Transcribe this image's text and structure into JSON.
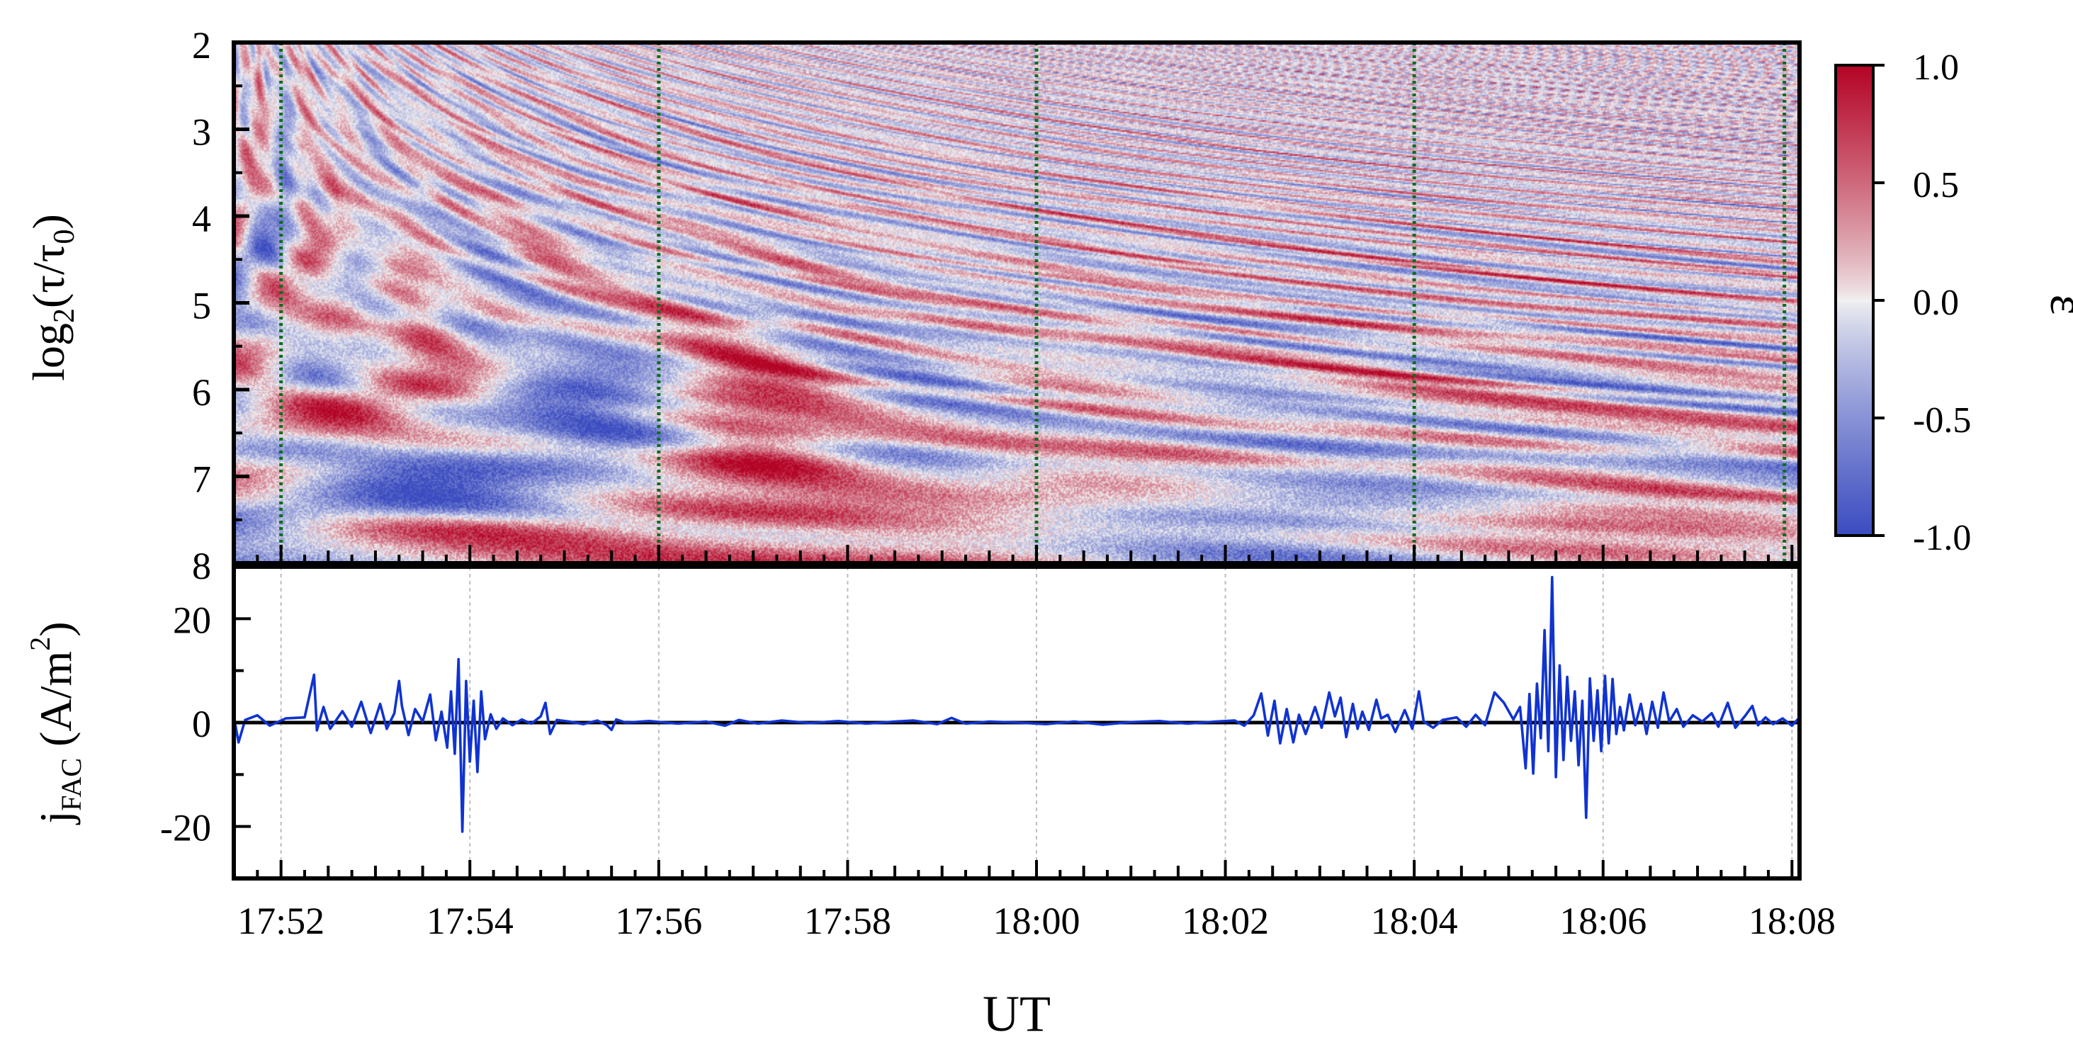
{
  "figure": {
    "xlabel": "UT",
    "colors": {
      "positive": "#b40426",
      "neutral": "#f2f2f2",
      "negative": "#3b4cc0",
      "current_line": "#1033d0",
      "marker_lines": "#0b6e1a"
    }
  },
  "chart_data": [
    {
      "type": "heatmap",
      "panel": "top",
      "ylabel_main": "log",
      "ylabel_sub": "2",
      "ylabel_rest": "(τ/τ",
      "ylabel_sub2": "0",
      "ylabel_close": ")",
      "y_ticks": [
        "2",
        "3",
        "4",
        "5",
        "6",
        "7",
        "8"
      ],
      "ylim": [
        2,
        8
      ],
      "y_inverted": true,
      "x_time_range": [
        "17:51:30",
        "18:08:05"
      ],
      "value_range": [
        -1.0,
        1.0
      ],
      "dotted_markers_x": [
        "17:52:00",
        "17:56:00",
        "18:00:00",
        "18:04:00",
        "18:07:55"
      ],
      "colorbar": {
        "label": "ε̅",
        "ticks": [
          "1.0",
          "0.5",
          "0.0",
          "-0.5",
          "-1.0"
        ],
        "tick_values": [
          1.0,
          0.5,
          0.0,
          -0.5,
          -1.0
        ]
      }
    },
    {
      "type": "line",
      "panel": "bottom",
      "ylabel_j": "j",
      "ylabel_sub": "FAC",
      "ylabel_units": " (A/m",
      "ylabel_sup": "2",
      "ylabel_close": ")",
      "y_ticks": [
        "20",
        "0",
        "-20"
      ],
      "y_tick_values": [
        20,
        0,
        -20
      ],
      "ylim": [
        -30,
        30
      ],
      "x_ticks": [
        "17:52",
        "17:54",
        "17:56",
        "17:58",
        "18:00",
        "18:02",
        "18:04",
        "18:06",
        "18:08"
      ],
      "x_tick_minutes": [
        0.5,
        2.5,
        4.5,
        6.5,
        8.5,
        10.5,
        12.5,
        14.5,
        16.5
      ],
      "x_range_minutes": [
        0,
        16.58
      ],
      "series": [
        {
          "name": "jFAC",
          "points": [
            [
              0.0,
              1.2
            ],
            [
              0.05,
              -3.8
            ],
            [
              0.12,
              0.5
            ],
            [
              0.25,
              1.4
            ],
            [
              0.38,
              -0.6
            ],
            [
              0.55,
              0.8
            ],
            [
              0.75,
              1.0
            ],
            [
              0.85,
              9.2
            ],
            [
              0.88,
              -1.5
            ],
            [
              0.95,
              3.0
            ],
            [
              1.02,
              -1.2
            ],
            [
              1.15,
              2.2
            ],
            [
              1.25,
              -0.8
            ],
            [
              1.35,
              4.0
            ],
            [
              1.45,
              -2.0
            ],
            [
              1.55,
              3.6
            ],
            [
              1.62,
              -1.2
            ],
            [
              1.7,
              1.8
            ],
            [
              1.75,
              8.0
            ],
            [
              1.78,
              3.2
            ],
            [
              1.85,
              -2.4
            ],
            [
              1.92,
              2.6
            ],
            [
              2.0,
              0.2
            ],
            [
              2.08,
              5.4
            ],
            [
              2.14,
              -3.4
            ],
            [
              2.2,
              2.1
            ],
            [
              2.26,
              -4.8
            ],
            [
              2.3,
              6.0
            ],
            [
              2.34,
              -6.0
            ],
            [
              2.38,
              12.2
            ],
            [
              2.42,
              -21.0
            ],
            [
              2.46,
              8.0
            ],
            [
              2.5,
              -7.5
            ],
            [
              2.54,
              4.2
            ],
            [
              2.58,
              -9.5
            ],
            [
              2.62,
              6.0
            ],
            [
              2.66,
              -3.2
            ],
            [
              2.72,
              1.6
            ],
            [
              2.78,
              -1.2
            ],
            [
              2.85,
              0.8
            ],
            [
              2.95,
              -0.5
            ],
            [
              3.05,
              0.6
            ],
            [
              3.15,
              -0.2
            ],
            [
              3.25,
              1.2
            ],
            [
              3.3,
              3.8
            ],
            [
              3.35,
              -2.2
            ],
            [
              3.42,
              0.5
            ],
            [
              3.55,
              0.2
            ],
            [
              3.7,
              -0.3
            ],
            [
              3.85,
              0.4
            ],
            [
              3.95,
              -0.5
            ],
            [
              4.0,
              -1.4
            ],
            [
              4.05,
              0.6
            ],
            [
              4.15,
              0.0
            ],
            [
              4.4,
              0.3
            ],
            [
              4.7,
              -0.2
            ],
            [
              5.0,
              0.2
            ],
            [
              5.2,
              -0.6
            ],
            [
              5.35,
              0.5
            ],
            [
              5.55,
              -0.2
            ],
            [
              5.8,
              0.4
            ],
            [
              6.1,
              -0.1
            ],
            [
              6.4,
              0.3
            ],
            [
              6.7,
              -0.2
            ],
            [
              7.0,
              0.2
            ],
            [
              7.2,
              0.4
            ],
            [
              7.45,
              -0.3
            ],
            [
              7.6,
              0.9
            ],
            [
              7.75,
              -0.2
            ],
            [
              8.0,
              0.2
            ],
            [
              8.3,
              0.0
            ],
            [
              8.6,
              -0.3
            ],
            [
              8.9,
              0.2
            ],
            [
              9.2,
              -0.4
            ],
            [
              9.5,
              0.1
            ],
            [
              9.8,
              0.3
            ],
            [
              10.1,
              -0.2
            ],
            [
              10.4,
              0.2
            ],
            [
              10.6,
              0.4
            ],
            [
              10.7,
              -0.6
            ],
            [
              10.8,
              1.4
            ],
            [
              10.88,
              5.6
            ],
            [
              10.95,
              -2.5
            ],
            [
              11.02,
              4.2
            ],
            [
              11.08,
              -4.0
            ],
            [
              11.15,
              2.6
            ],
            [
              11.22,
              -3.8
            ],
            [
              11.28,
              1.5
            ],
            [
              11.35,
              -2.2
            ],
            [
              11.45,
              3.0
            ],
            [
              11.52,
              -1.0
            ],
            [
              11.6,
              5.8
            ],
            [
              11.66,
              1.2
            ],
            [
              11.72,
              4.8
            ],
            [
              11.78,
              -2.8
            ],
            [
              11.85,
              3.6
            ],
            [
              11.9,
              -1.2
            ],
            [
              11.95,
              2.1
            ],
            [
              12.02,
              -1.4
            ],
            [
              12.1,
              4.4
            ],
            [
              12.15,
              0.8
            ],
            [
              12.22,
              1.5
            ],
            [
              12.3,
              -1.8
            ],
            [
              12.4,
              2.4
            ],
            [
              12.48,
              -1.2
            ],
            [
              12.55,
              6.0
            ],
            [
              12.6,
              0.2
            ],
            [
              12.7,
              -1.0
            ],
            [
              12.8,
              0.5
            ],
            [
              12.95,
              1.0
            ],
            [
              13.05,
              -0.8
            ],
            [
              13.15,
              1.5
            ],
            [
              13.25,
              -0.5
            ],
            [
              13.35,
              5.8
            ],
            [
              13.45,
              3.8
            ],
            [
              13.55,
              0.6
            ],
            [
              13.62,
              3.0
            ],
            [
              13.68,
              -8.8
            ],
            [
              13.72,
              5.5
            ],
            [
              13.76,
              -9.8
            ],
            [
              13.8,
              7.5
            ],
            [
              13.84,
              -3.0
            ],
            [
              13.88,
              17.8
            ],
            [
              13.92,
              -5.5
            ],
            [
              13.96,
              28.0
            ],
            [
              14.0,
              -10.5
            ],
            [
              14.04,
              11.0
            ],
            [
              14.08,
              -7.2
            ],
            [
              14.12,
              8.8
            ],
            [
              14.16,
              -3.5
            ],
            [
              14.2,
              6.0
            ],
            [
              14.24,
              -8.2
            ],
            [
              14.28,
              4.2
            ],
            [
              14.32,
              -18.3
            ],
            [
              14.36,
              8.5
            ],
            [
              14.4,
              -3.5
            ],
            [
              14.44,
              6.2
            ],
            [
              14.48,
              -5.5
            ],
            [
              14.52,
              9.0
            ],
            [
              14.56,
              -4.0
            ],
            [
              14.6,
              8.4
            ],
            [
              14.64,
              -2.2
            ],
            [
              14.68,
              3.0
            ],
            [
              14.72,
              -1.5
            ],
            [
              14.78,
              5.4
            ],
            [
              14.84,
              -0.5
            ],
            [
              14.9,
              3.6
            ],
            [
              14.96,
              -2.2
            ],
            [
              15.02,
              4.0
            ],
            [
              15.08,
              -1.0
            ],
            [
              15.14,
              5.8
            ],
            [
              15.2,
              0.2
            ],
            [
              15.28,
              2.6
            ],
            [
              15.35,
              -0.8
            ],
            [
              15.45,
              1.4
            ],
            [
              15.55,
              0.2
            ],
            [
              15.65,
              1.8
            ],
            [
              15.72,
              -0.8
            ],
            [
              15.82,
              3.8
            ],
            [
              15.9,
              -1.0
            ],
            [
              16.0,
              1.2
            ],
            [
              16.08,
              3.2
            ],
            [
              16.14,
              -0.5
            ],
            [
              16.22,
              1.0
            ],
            [
              16.3,
              -0.3
            ],
            [
              16.4,
              0.8
            ],
            [
              16.5,
              -0.6
            ],
            [
              16.58,
              1.0
            ]
          ]
        }
      ],
      "zero_line": 0
    }
  ]
}
